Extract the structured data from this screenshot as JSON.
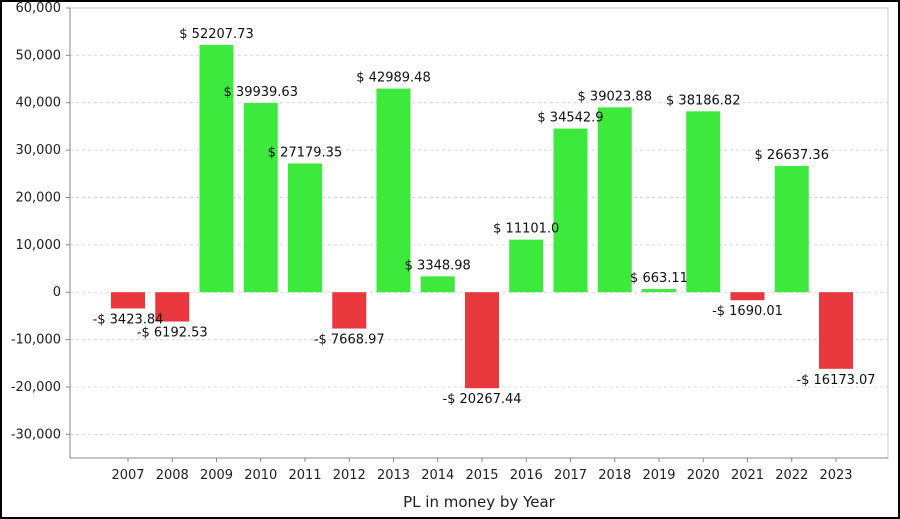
{
  "chart_data": {
    "type": "bar",
    "categories": [
      "2007",
      "2008",
      "2009",
      "2010",
      "2011",
      "2012",
      "2013",
      "2014",
      "2015",
      "2016",
      "2017",
      "2018",
      "2019",
      "2020",
      "2021",
      "2022",
      "2023"
    ],
    "values": [
      -3423.84,
      -6192.53,
      52207.73,
      39939.63,
      27179.35,
      -7668.97,
      42989.48,
      3348.98,
      -20267.44,
      11101.0,
      34542.9,
      39023.88,
      663.11,
      38186.82,
      -1690.01,
      26637.36,
      -16173.07
    ],
    "data_labels": [
      "-$ 3423.84",
      "-$ 6192.53",
      "$ 52207.73",
      "$ 39939.63",
      "$ 27179.35",
      "-$ 7668.97",
      "$ 42989.48",
      "$ 3348.98",
      "-$ 20267.44",
      "$ 11101.0",
      "$ 34542.9",
      "$ 39023.88",
      "$ 663.11",
      "$ 38186.82",
      "-$ 1690.01",
      "$ 26637.36",
      "-$ 16173.07"
    ],
    "xlabel": "PL in money by Year",
    "ylabel": "",
    "ylim": [
      -35000,
      60000
    ],
    "yticks": [
      60000,
      50000,
      40000,
      30000,
      20000,
      10000,
      0,
      -10000,
      -20000,
      -30000
    ],
    "ytick_labels": [
      "60,000",
      "50,000",
      "40,000",
      "30,000",
      "20,000",
      "10,000",
      "0",
      "-10,000",
      "-20,000",
      "-30,000"
    ],
    "grid": true,
    "colors": {
      "positive": "#3ee93e",
      "negative": "#e8383d",
      "grid": "#d9d9d9",
      "axis": "#888888"
    }
  }
}
